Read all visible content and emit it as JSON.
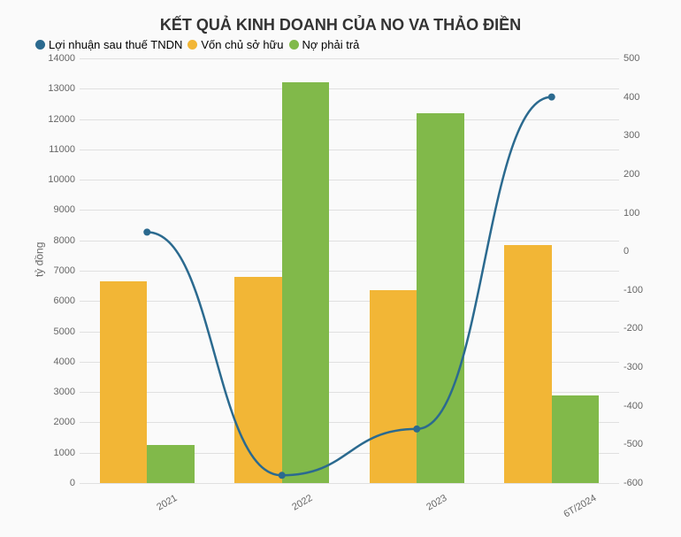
{
  "chart": {
    "type": "bar+line",
    "title": "KẾT QUẢ KINH DOANH CỦA NO VA THẢO ĐIỀN",
    "title_fontsize": 18,
    "background_color": "#fafafa",
    "grid_color": "#e0e0e0",
    "text_color": "#666666",
    "legend": {
      "items": [
        {
          "label": "Lợi nhuận sau thuế TNDN",
          "color": "#2b6a8f"
        },
        {
          "label": "Vốn chủ sở hữu",
          "color": "#f2b636"
        },
        {
          "label": "Nợ phải trả",
          "color": "#81b94a"
        }
      ]
    },
    "categories": [
      "2021",
      "2022",
      "2023",
      "6T/2024"
    ],
    "y_left": {
      "label": "tỷ đồng",
      "min": 0,
      "max": 14000,
      "step": 1000,
      "label_fontsize": 12,
      "tick_fontsize": 11
    },
    "y_right": {
      "min": -600,
      "max": 500,
      "step": 100,
      "tick_fontsize": 11
    },
    "bar_series": [
      {
        "name": "Vốn chủ sở hữu",
        "color": "#f2b636",
        "values": [
          6650,
          6800,
          6350,
          7850
        ]
      },
      {
        "name": "Nợ phải trả",
        "color": "#81b94a",
        "values": [
          1250,
          13200,
          12200,
          2900
        ]
      }
    ],
    "line_series": {
      "name": "Lợi nhuận sau thuế TNDN",
      "color": "#2b6a8f",
      "values": [
        50,
        -580,
        -460,
        400
      ],
      "line_width": 2.5,
      "marker_radius": 4
    },
    "bar_width_ratio": 0.35,
    "category_gap_ratio": 0.12
  }
}
